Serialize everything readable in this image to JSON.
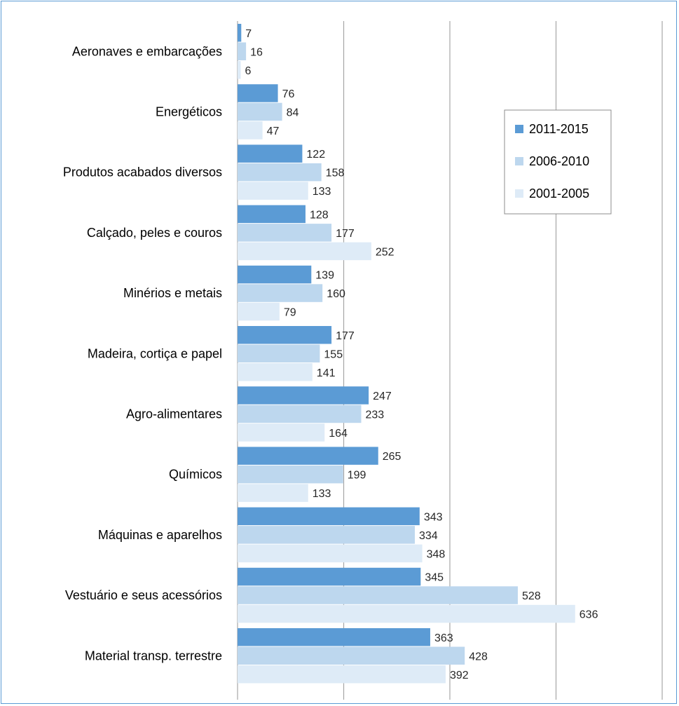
{
  "chart_data": {
    "type": "bar",
    "orientation": "horizontal",
    "categories": [
      "Aeronaves e embarcações",
      "Energéticos",
      "Produtos acabados diversos",
      "Calçado, peles e couros",
      "Minérios e metais",
      "Madeira, cortiça e papel",
      "Agro-alimentares",
      "Químicos",
      "Máquinas e aparelhos",
      "Vestuário e seus acessórios",
      "Material transp. terrestre"
    ],
    "series": [
      {
        "name": "2011-2015",
        "color": "#5b9bd5",
        "values": [
          7,
          76,
          122,
          128,
          139,
          177,
          247,
          265,
          343,
          345,
          363
        ]
      },
      {
        "name": "2006-2010",
        "color": "#bdd7ee",
        "values": [
          16,
          84,
          158,
          177,
          160,
          155,
          233,
          199,
          334,
          528,
          428
        ]
      },
      {
        "name": "2001-2005",
        "color": "#deebf7",
        "values": [
          6,
          47,
          133,
          252,
          79,
          141,
          164,
          133,
          348,
          636,
          392
        ]
      }
    ],
    "xlim": [
      0,
      800
    ],
    "gridlines_x": [
      0,
      200,
      400,
      600,
      800
    ],
    "grid": true,
    "legend": "top-right",
    "data_labels": true
  }
}
